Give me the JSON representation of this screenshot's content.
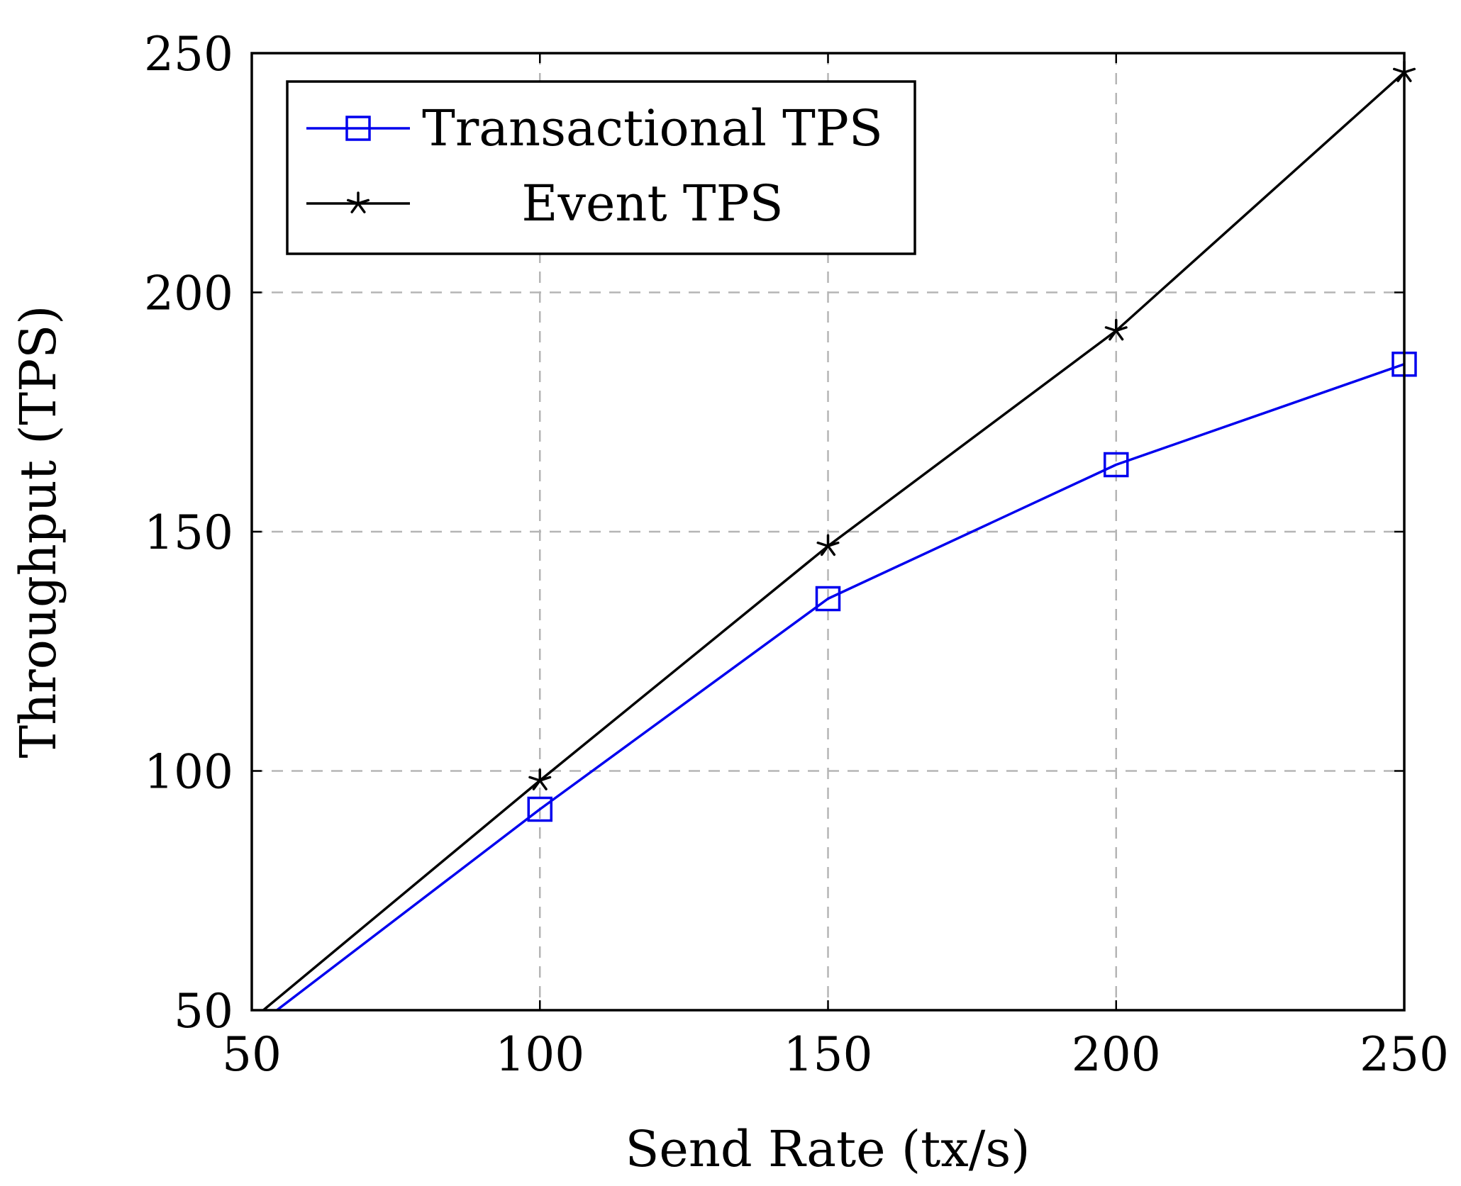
{
  "chart_data": {
    "type": "line",
    "title": "",
    "xlabel": "Send Rate (tx/s)",
    "ylabel": "Throughput (TPS)",
    "xlim": [
      50,
      250
    ],
    "ylim": [
      50,
      250
    ],
    "xticks": [
      50,
      100,
      150,
      200,
      250
    ],
    "yticks": [
      50,
      100,
      150,
      200,
      250
    ],
    "grid": true,
    "legend": "top-left",
    "series": [
      {
        "name": "Transactional TPS",
        "color": "#0000ee",
        "marker": "square",
        "x": [
          50,
          100,
          150,
          200,
          250
        ],
        "y": [
          46,
          92,
          136,
          164,
          185
        ]
      },
      {
        "name": "Event TPS",
        "color": "#000000",
        "marker": "star",
        "x": [
          50,
          100,
          150,
          200,
          250
        ],
        "y": [
          48,
          98,
          147,
          192,
          246
        ]
      }
    ]
  }
}
